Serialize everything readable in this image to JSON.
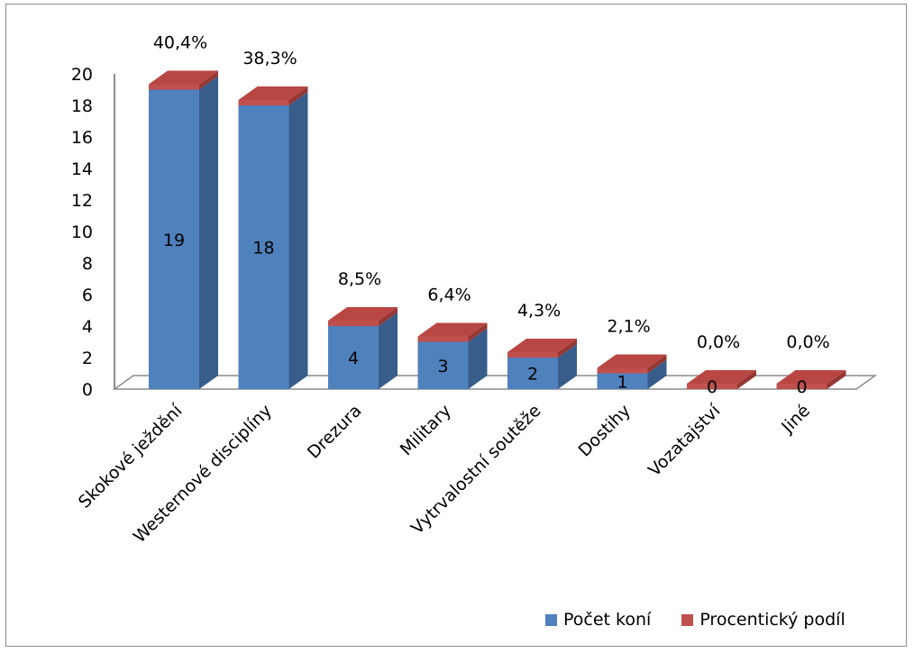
{
  "chart_data": {
    "type": "bar",
    "style": "3d-stacked-column",
    "title": "",
    "xlabel": "",
    "ylabel": "",
    "ylim": [
      0,
      20
    ],
    "yticks": [
      "0",
      "2",
      "4",
      "6",
      "8",
      "10",
      "12",
      "14",
      "16",
      "18",
      "20"
    ],
    "categories": [
      "Skokové ježdění",
      "Westernové disciplíny",
      "Drezura",
      "Military",
      "Vytrvalostní soutěže",
      "Dostihy",
      "Vozatajství",
      "Jiné"
    ],
    "series": [
      {
        "name": "Počet koní",
        "values": [
          19,
          18,
          4,
          3,
          2,
          1,
          0,
          0
        ],
        "labels": [
          "19",
          "18",
          "4",
          "3",
          "2",
          "1",
          "0",
          "0"
        ],
        "color": "#4f81bd"
      },
      {
        "name": "Procentický podíl",
        "values": [
          0.404,
          0.383,
          0.085,
          0.064,
          0.043,
          0.021,
          0.0,
          0.0
        ],
        "labels": [
          "40,4%",
          "38,3%",
          "8,5%",
          "6,4%",
          "4,3%",
          "2,1%",
          "0,0%",
          "0,0%"
        ],
        "color": "#c0504d"
      }
    ],
    "grid": false,
    "legend_position": "bottom-right"
  },
  "legend": {
    "item1": "Počet koní",
    "item2": "Procentický podíl"
  }
}
